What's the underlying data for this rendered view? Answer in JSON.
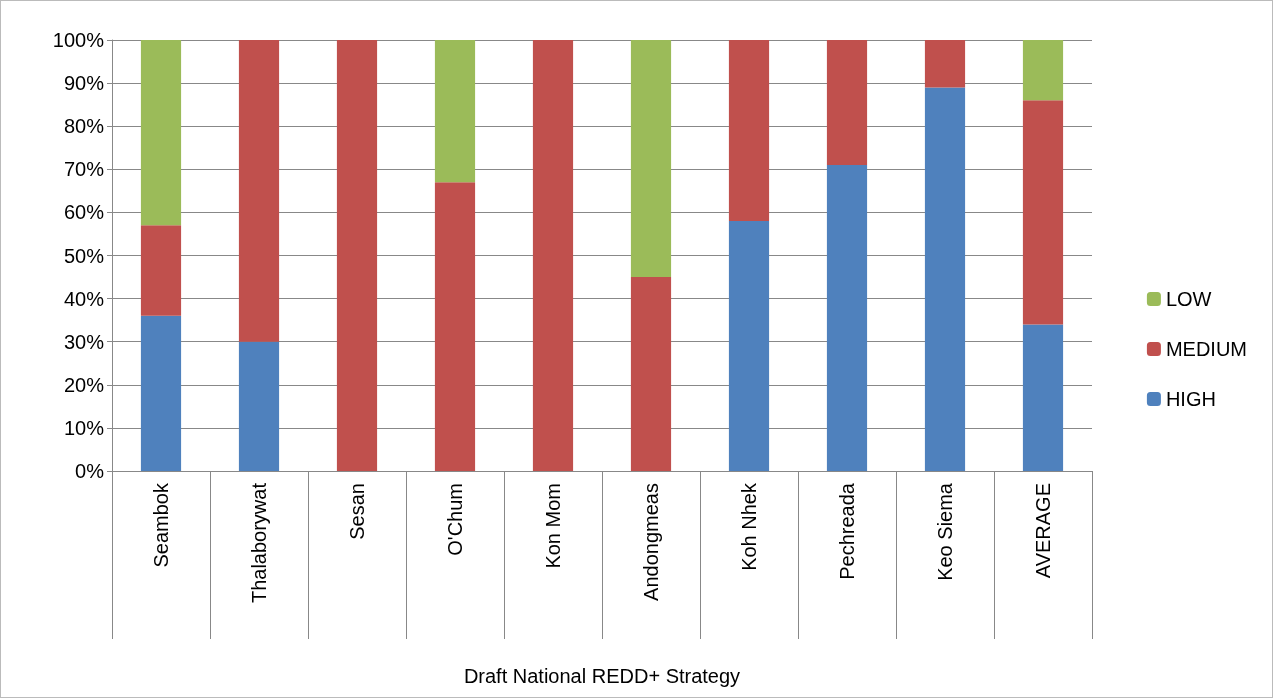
{
  "chart_data": {
    "type": "bar",
    "stacked": true,
    "xlabel": "Draft National REDD+ Strategy",
    "categories": [
      "Seambok",
      "Thalaborywat",
      "Sesan",
      "O'Chum",
      "Kon Mom",
      "Andongmeas",
      "Koh Nhek",
      "Pechreada",
      "Keo Siema",
      "AVERAGE"
    ],
    "series": [
      {
        "name": "HIGH",
        "color": "#4f81bd",
        "values": [
          36,
          30,
          0,
          0,
          0,
          0,
          58,
          71,
          89,
          34
        ]
      },
      {
        "name": "MEDIUM",
        "color": "#c0504d",
        "values": [
          21,
          70,
          100,
          67,
          100,
          45,
          42,
          29,
          11,
          52
        ]
      },
      {
        "name": "LOW",
        "color": "#9bbb59",
        "values": [
          43,
          0,
          0,
          33,
          0,
          55,
          0,
          0,
          0,
          14
        ]
      }
    ],
    "ylim": [
      0,
      100
    ],
    "yticks": [
      {
        "value": 0,
        "label": "0%"
      },
      {
        "value": 10,
        "label": "10%"
      },
      {
        "value": 20,
        "label": "20%"
      },
      {
        "value": 30,
        "label": "30%"
      },
      {
        "value": 40,
        "label": "40%"
      },
      {
        "value": 50,
        "label": "50%"
      },
      {
        "value": 60,
        "label": "60%"
      },
      {
        "value": 70,
        "label": "70%"
      },
      {
        "value": 80,
        "label": "80%"
      },
      {
        "value": 90,
        "label": "90%"
      },
      {
        "value": 100,
        "label": "100%"
      }
    ],
    "grid": "y",
    "legend": "right"
  }
}
